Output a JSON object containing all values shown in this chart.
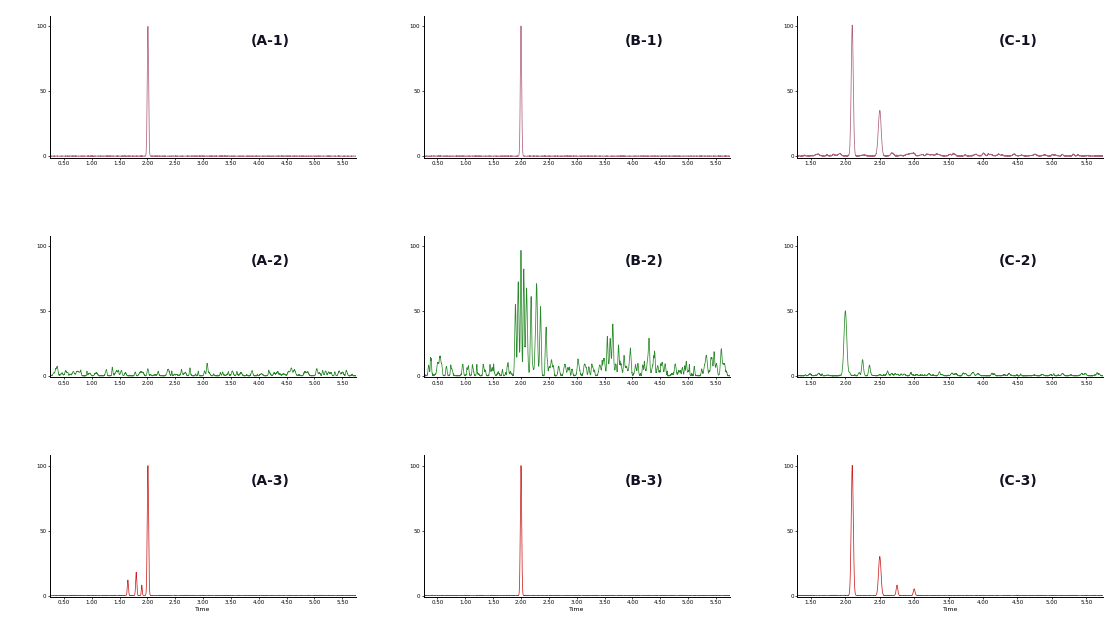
{
  "row_colors": [
    "#b06080",
    "#2a8a2a",
    "#cc2222"
  ],
  "background": "#ffffff",
  "ylim": [
    0,
    100
  ],
  "panels": {
    "A1": {
      "peak_time": 2.01,
      "xstart": 0.25,
      "xend": 5.75,
      "xticks": [
        0.5,
        1.0,
        1.5,
        2.0,
        2.5,
        3.0,
        3.5,
        4.0,
        4.5,
        5.0,
        5.5
      ],
      "ytick_label": "50"
    },
    "B1": {
      "peak_time": 2.0,
      "xstart": 0.25,
      "xend": 5.75,
      "xticks": [
        0.5,
        1.0,
        1.5,
        2.0,
        2.5,
        3.0,
        3.5,
        4.0,
        4.5,
        5.0,
        5.5
      ],
      "ytick_label": "50"
    },
    "C1": {
      "peak_time": 2.1,
      "xstart": 1.3,
      "xend": 5.75,
      "xticks": [
        1.5,
        2.0,
        2.5,
        3.0,
        3.5,
        4.0,
        4.5,
        5.0,
        5.5
      ],
      "ytick_label": "50"
    },
    "A2": {
      "xstart": 0.25,
      "xend": 5.75,
      "xticks": [
        0.5,
        1.0,
        1.5,
        2.0,
        2.5,
        3.0,
        3.5,
        4.0,
        4.5,
        5.0,
        5.5
      ],
      "ytick_label": "50"
    },
    "B2": {
      "xstart": 0.25,
      "xend": 5.75,
      "xticks": [
        0.5,
        1.0,
        1.5,
        2.0,
        2.5,
        3.0,
        3.5,
        4.0,
        4.5,
        5.0,
        5.5
      ],
      "ytick_label": "50"
    },
    "C2": {
      "xstart": 1.3,
      "xend": 5.75,
      "xticks": [
        1.5,
        2.0,
        2.5,
        3.0,
        3.5,
        4.0,
        4.5,
        5.0,
        5.5
      ],
      "ytick_label": "50"
    },
    "A3": {
      "peak_time": 2.01,
      "xstart": 0.25,
      "xend": 5.75,
      "xticks": [
        0.5,
        1.0,
        1.5,
        2.0,
        2.5,
        3.0,
        3.5,
        4.0,
        4.5,
        5.0,
        5.5
      ],
      "ytick_label": "50"
    },
    "B3": {
      "peak_time": 2.0,
      "xstart": 0.25,
      "xend": 5.75,
      "xticks": [
        0.5,
        1.0,
        1.5,
        2.0,
        2.5,
        3.0,
        3.5,
        4.0,
        4.5,
        5.0,
        5.5
      ],
      "ytick_label": "50"
    },
    "C3": {
      "peak_time": 2.1,
      "xstart": 1.3,
      "xend": 5.75,
      "xticks": [
        1.5,
        2.0,
        2.5,
        3.0,
        3.5,
        4.0,
        4.5,
        5.0,
        5.5
      ],
      "ytick_label": "50"
    }
  }
}
